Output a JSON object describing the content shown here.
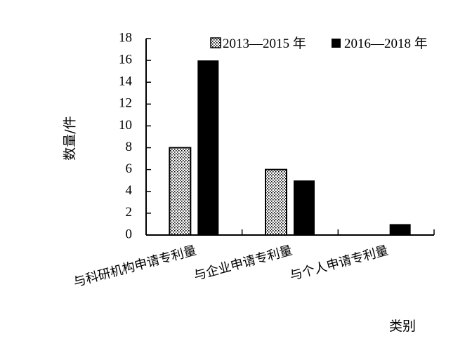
{
  "chart_data": {
    "type": "bar",
    "categories": [
      "与科研机构申请专利量",
      "与企业申请专利量",
      "与个人申请专利量"
    ],
    "series": [
      {
        "name": "2013—2015 年",
        "values": [
          8,
          6,
          0
        ],
        "fill": "dotted"
      },
      {
        "name": "2016—2018 年",
        "values": [
          16,
          5,
          1
        ],
        "fill": "#000000"
      }
    ],
    "xlabel": "类别",
    "ylabel": "数量/件",
    "ylim": [
      0,
      18
    ],
    "yticks": [
      "0",
      "2",
      "4",
      "6",
      "8",
      "10",
      "12",
      "14",
      "16",
      "18"
    ],
    "grid": false,
    "legend_position": "top-right"
  }
}
